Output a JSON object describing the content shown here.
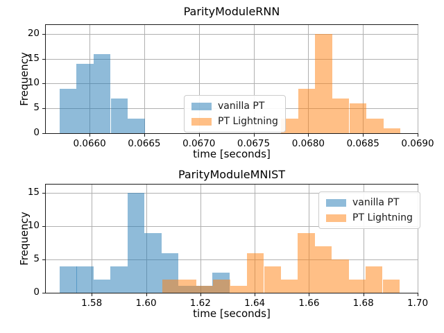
{
  "figure_bg": "#ffffff",
  "chart_data": [
    {
      "type": "histogram",
      "title": "ParityModuleRNN",
      "xlabel": "time [seconds]",
      "ylabel": "Frequency",
      "grid": true,
      "legend": {
        "position": "center",
        "entries": [
          "vanilla PT",
          "PT Lightning"
        ]
      },
      "xlim": [
        0.0656,
        0.069
      ],
      "ylim": [
        0,
        21.8
      ],
      "xticks": [
        "0.0660",
        "0.0665",
        "0.0670",
        "0.0675",
        "0.0680",
        "0.0685",
        "0.0690"
      ],
      "xtick_values": [
        0.066,
        0.0665,
        0.067,
        0.0675,
        0.068,
        0.0685,
        0.069
      ],
      "yticks": [
        "0",
        "5",
        "10",
        "15",
        "20"
      ],
      "ytick_values": [
        0,
        5,
        10,
        15,
        20
      ],
      "series": [
        {
          "name": "vanilla PT",
          "color": "#1f77b4",
          "alpha": 0.5,
          "bin_start": 0.065725,
          "bin_width": 0.000156,
          "counts": [
            9,
            14,
            16,
            7,
            3
          ]
        },
        {
          "name": "PT Lightning",
          "color": "#ff7f0e",
          "alpha": 0.5,
          "bin_start": 0.067751,
          "bin_width": 0.000156,
          "counts": [
            3,
            9,
            20,
            7,
            6,
            3,
            1
          ]
        }
      ]
    },
    {
      "type": "histogram",
      "title": "ParityModuleMNIST",
      "xlabel": "time [seconds]",
      "ylabel": "Frequency",
      "grid": true,
      "legend": {
        "position": "upper right",
        "entries": [
          "vanilla PT",
          "PT Lightning"
        ]
      },
      "xlim": [
        1.5631,
        1.7
      ],
      "ylim": [
        0,
        16.3
      ],
      "xticks": [
        "1.58",
        "1.60",
        "1.62",
        "1.64",
        "1.66",
        "1.68",
        "1.70"
      ],
      "xtick_values": [
        1.58,
        1.6,
        1.62,
        1.64,
        1.66,
        1.68,
        1.7
      ],
      "yticks": [
        "0",
        "5",
        "10",
        "15"
      ],
      "ytick_values": [
        0,
        5,
        10,
        15
      ],
      "series": [
        {
          "name": "vanilla PT",
          "color": "#1f77b4",
          "alpha": 0.5,
          "bin_start": 1.5682,
          "bin_width": 0.00625,
          "counts": [
            4,
            4,
            2,
            4,
            15,
            9,
            6,
            1,
            1,
            3
          ]
        },
        {
          "name": "PT Lightning",
          "color": "#ff7f0e",
          "alpha": 0.5,
          "bin_start": 1.606,
          "bin_width": 0.00624,
          "counts": [
            2,
            2,
            1,
            2,
            1,
            6,
            4,
            2,
            9,
            7,
            5,
            2,
            4,
            2
          ]
        }
      ]
    }
  ]
}
